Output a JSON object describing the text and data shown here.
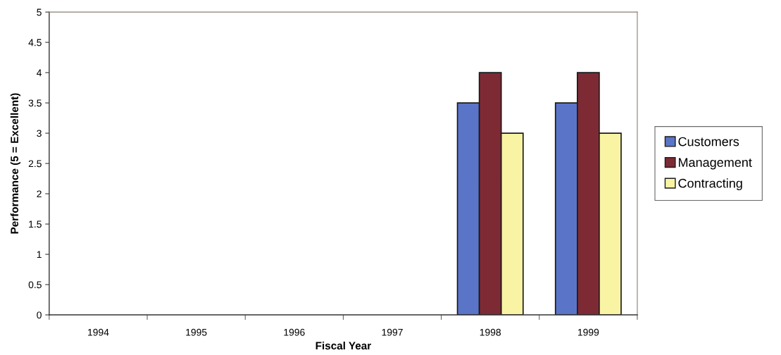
{
  "chart_data": {
    "type": "bar",
    "xlabel": "Fiscal Year",
    "ylabel": "Performance (5 = Excellent)",
    "categories": [
      "1994",
      "1995",
      "1996",
      "1997",
      "1998",
      "1999"
    ],
    "series": [
      {
        "name": "Customers",
        "color": "#5a74c8",
        "values": [
          null,
          null,
          null,
          null,
          3.5,
          3.5
        ]
      },
      {
        "name": "Management",
        "color": "#7e2a35",
        "values": [
          null,
          null,
          null,
          null,
          4,
          4
        ]
      },
      {
        "name": "Contracting",
        "color": "#f8f4a4",
        "values": [
          null,
          null,
          null,
          null,
          3,
          3
        ]
      }
    ],
    "ylim": [
      0,
      5
    ],
    "yticks": [
      0,
      0.5,
      1,
      1.5,
      2,
      2.5,
      3,
      3.5,
      4,
      4.5,
      5
    ],
    "grid": false,
    "legend": "right"
  }
}
